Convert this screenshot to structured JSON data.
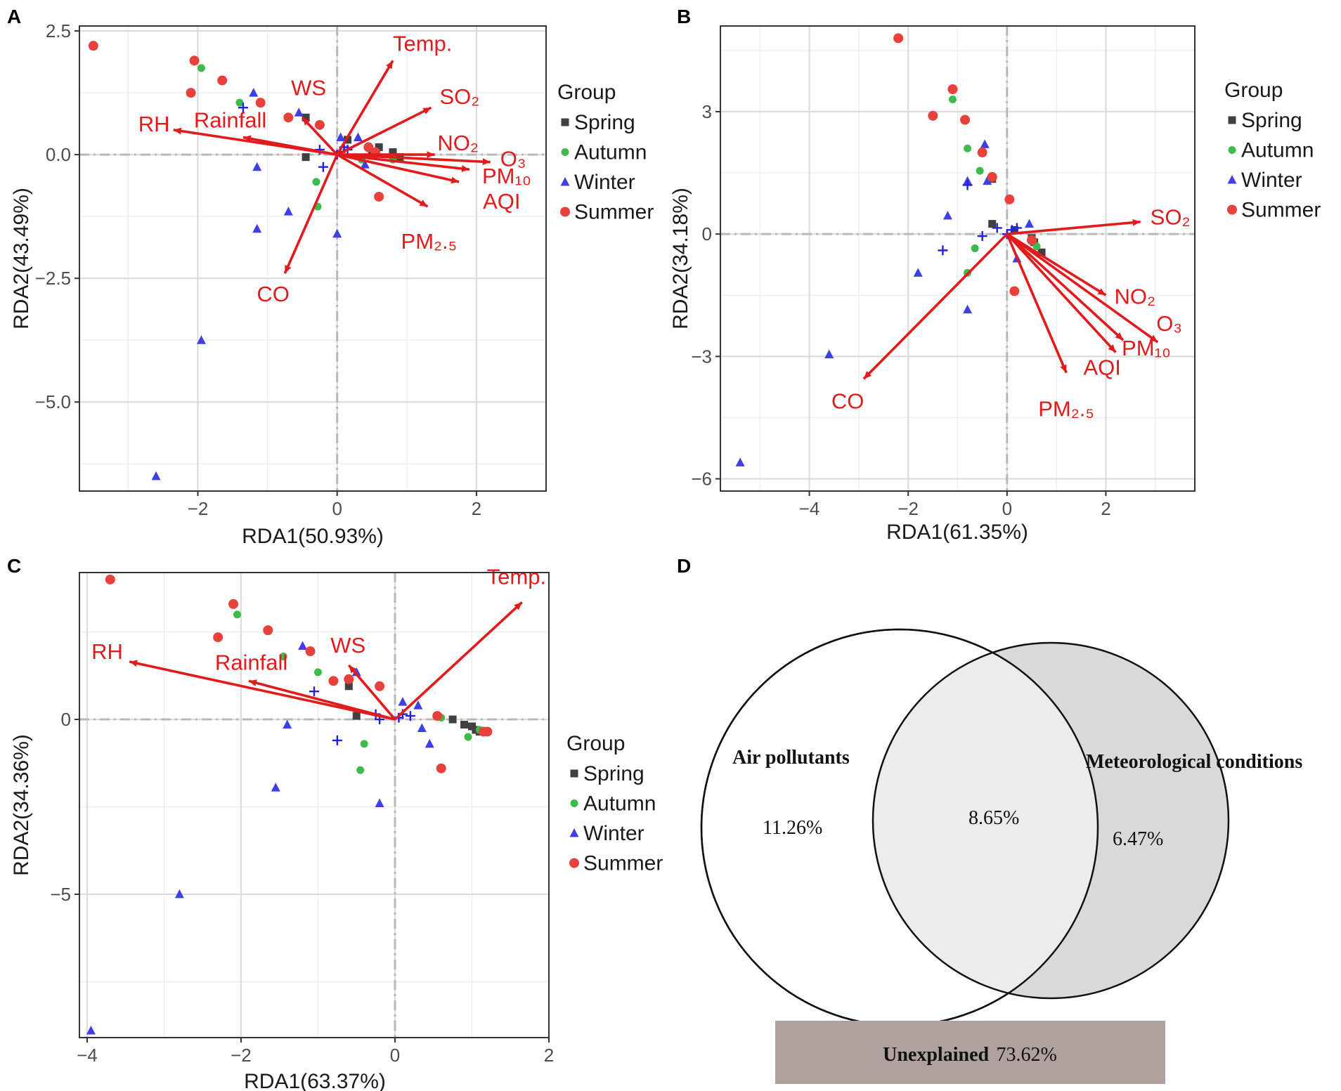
{
  "colors": {
    "spring": "#404040",
    "autumn": "#3dbb4a",
    "winter": "#3f3fe6",
    "summer": "#e8403a",
    "arrow": "#e31a1c",
    "species": "#2222dd"
  },
  "legend": {
    "title": "Group",
    "items": [
      {
        "key": "spring",
        "label": "Spring",
        "shape": "square"
      },
      {
        "key": "autumn",
        "label": "Autumn",
        "shape": "circle"
      },
      {
        "key": "winter",
        "label": "Winter",
        "shape": "triangle"
      },
      {
        "key": "summer",
        "label": "Summer",
        "shape": "circle"
      }
    ]
  },
  "chart_data": [
    {
      "panel": "A",
      "type": "scatter",
      "xlabel": "RDA1(50.93%)",
      "ylabel": "RDA2(43.49%)",
      "xlim": [
        -3.7,
        3.0
      ],
      "ylim": [
        -6.8,
        2.6
      ],
      "xticks": [
        -2,
        0,
        2
      ],
      "xtick_labels": [
        "−2",
        "0",
        "2"
      ],
      "yticks": [
        2.5,
        0.0,
        -2.5,
        -5.0
      ],
      "ytick_labels": [
        "2.5",
        "0.0",
        "−2.5",
        "−5.0"
      ],
      "arrows": [
        {
          "label": "Temp.",
          "x": 0.8,
          "y": 1.9
        },
        {
          "label": "SO₂",
          "x": 1.35,
          "y": 0.95
        },
        {
          "label": "NO₂",
          "x": 1.4,
          "y": 0.0
        },
        {
          "label": "O₃",
          "x": 2.2,
          "y": -0.15
        },
        {
          "label": "PM₁₀",
          "x": 1.9,
          "y": -0.3
        },
        {
          "label": "AQI",
          "x": 1.75,
          "y": -0.55
        },
        {
          "label": "PM₂.₅",
          "x": 1.3,
          "y": -1.05
        },
        {
          "label": "CO",
          "x": -0.75,
          "y": -2.4
        },
        {
          "label": "RH",
          "x": -2.35,
          "y": 0.5
        },
        {
          "label": "Rainfall",
          "x": -1.35,
          "y": 0.35
        },
        {
          "label": "WS",
          "x": -0.5,
          "y": 0.75
        }
      ],
      "points": {
        "spring": [
          [
            -0.45,
            0.75
          ],
          [
            -0.45,
            -0.05
          ],
          [
            0.15,
            0.3
          ],
          [
            0.6,
            0.15
          ],
          [
            0.8,
            0.05
          ],
          [
            0.9,
            -0.05
          ],
          [
            0.5,
            0.05
          ]
        ],
        "autumn": [
          [
            -1.95,
            1.75
          ],
          [
            -1.4,
            1.05
          ],
          [
            -0.3,
            -0.55
          ],
          [
            -0.28,
            -1.05
          ],
          [
            0.55,
            0.05
          ],
          [
            0.8,
            -0.1
          ],
          [
            0.35,
            -0.1
          ]
        ],
        "winter": [
          [
            -1.2,
            1.25
          ],
          [
            -0.55,
            0.85
          ],
          [
            -1.15,
            -0.25
          ],
          [
            -1.15,
            -1.5
          ],
          [
            -0.7,
            -1.15
          ],
          [
            -1.95,
            -3.75
          ],
          [
            -2.6,
            -6.5
          ],
          [
            0.05,
            0.35
          ],
          [
            0.3,
            0.35
          ],
          [
            0.0,
            -1.6
          ],
          [
            0.4,
            -0.2
          ]
        ],
        "summer": [
          [
            -3.5,
            2.2
          ],
          [
            -2.05,
            1.9
          ],
          [
            -1.65,
            1.5
          ],
          [
            -2.1,
            1.25
          ],
          [
            -1.1,
            1.05
          ],
          [
            -0.7,
            0.75
          ],
          [
            -0.25,
            0.6
          ],
          [
            0.6,
            -0.85
          ],
          [
            0.45,
            0.15
          ],
          [
            0.55,
            0.05
          ]
        ],
        "species": [
          [
            -1.35,
            0.95
          ],
          [
            -0.25,
            0.1
          ],
          [
            -0.2,
            -0.25
          ],
          [
            0.0,
            0.0
          ],
          [
            0.05,
            0.05
          ],
          [
            0.1,
            0.15
          ],
          [
            0.15,
            0.1
          ]
        ]
      }
    },
    {
      "panel": "B",
      "type": "scatter",
      "xlabel": "RDA1(61.35%)",
      "ylabel": "RDA2(34.18%)",
      "xlim": [
        -5.8,
        3.8
      ],
      "ylim": [
        -6.3,
        5.1
      ],
      "xticks": [
        -4,
        -2,
        0,
        2
      ],
      "xtick_labels": [
        "−4",
        "−2",
        "0",
        "2"
      ],
      "yticks": [
        3,
        0,
        -3,
        -6
      ],
      "ytick_labels": [
        "3",
        "0",
        "−3",
        "−6"
      ],
      "arrows": [
        {
          "label": "SO₂",
          "x": 2.7,
          "y": 0.3
        },
        {
          "label": "NO₂",
          "x": 2.0,
          "y": -1.5
        },
        {
          "label": "O₃",
          "x": 3.05,
          "y": -2.65
        },
        {
          "label": "PM₁₀",
          "x": 2.35,
          "y": -2.6
        },
        {
          "label": "AQI",
          "x": 2.2,
          "y": -2.9
        },
        {
          "label": "PM₂.₅",
          "x": 1.2,
          "y": -3.4
        },
        {
          "label": "CO",
          "x": -2.9,
          "y": -3.55
        }
      ],
      "points": {
        "spring": [
          [
            -0.3,
            0.25
          ],
          [
            -0.3,
            1.35
          ],
          [
            0.5,
            -0.1
          ],
          [
            0.55,
            -0.2
          ],
          [
            0.7,
            -0.45
          ],
          [
            0.15,
            0.1
          ]
        ],
        "autumn": [
          [
            -1.1,
            3.3
          ],
          [
            -0.8,
            2.1
          ],
          [
            -0.55,
            1.55
          ],
          [
            -0.65,
            -0.35
          ],
          [
            -0.8,
            -0.95
          ],
          [
            0.6,
            -0.3
          ]
        ],
        "winter": [
          [
            -0.8,
            1.3
          ],
          [
            -0.45,
            2.2
          ],
          [
            -1.2,
            0.45
          ],
          [
            -0.4,
            1.3
          ],
          [
            0.45,
            0.25
          ],
          [
            -1.8,
            -0.95
          ],
          [
            -0.8,
            -1.85
          ],
          [
            -3.6,
            -2.95
          ],
          [
            -5.4,
            -5.6
          ],
          [
            0.2,
            -0.6
          ]
        ],
        "summer": [
          [
            -2.2,
            4.8
          ],
          [
            -1.1,
            3.55
          ],
          [
            -1.5,
            2.9
          ],
          [
            -0.85,
            2.8
          ],
          [
            -0.5,
            2.0
          ],
          [
            -0.3,
            1.4
          ],
          [
            0.05,
            0.85
          ],
          [
            0.15,
            -1.4
          ],
          [
            0.5,
            -0.15
          ]
        ],
        "species": [
          [
            -0.8,
            1.2
          ],
          [
            -0.5,
            -0.05
          ],
          [
            -1.3,
            -0.4
          ],
          [
            -0.2,
            0.15
          ],
          [
            0.0,
            0.0
          ],
          [
            0.1,
            0.1
          ],
          [
            0.2,
            0.15
          ]
        ]
      }
    },
    {
      "panel": "C",
      "type": "scatter",
      "xlabel": "RDA1(63.37%)",
      "ylabel": "RDA2(34.36%)",
      "xlim": [
        -4.1,
        2.0
      ],
      "ylim": [
        -9.1,
        4.2
      ],
      "xticks": [
        -4,
        -2,
        0,
        2
      ],
      "xtick_labels": [
        "−4",
        "−2",
        "0",
        "2"
      ],
      "yticks": [
        0,
        -5
      ],
      "ytick_labels": [
        "0",
        "−5"
      ],
      "arrows": [
        {
          "label": "Temp.",
          "x": 1.65,
          "y": 3.35
        },
        {
          "label": "RH",
          "x": -3.45,
          "y": 1.65
        },
        {
          "label": "Rainfall",
          "x": -1.9,
          "y": 1.1
        },
        {
          "label": "WS",
          "x": -0.6,
          "y": 1.55
        }
      ],
      "points": {
        "spring": [
          [
            -0.6,
            0.95
          ],
          [
            -0.5,
            0.1
          ],
          [
            0.75,
            0.0
          ],
          [
            0.9,
            -0.15
          ],
          [
            1.0,
            -0.2
          ],
          [
            1.05,
            -0.3
          ],
          [
            1.1,
            -0.35
          ]
        ],
        "autumn": [
          [
            -2.05,
            3.0
          ],
          [
            -1.45,
            1.8
          ],
          [
            -1.0,
            1.35
          ],
          [
            -0.4,
            -0.7
          ],
          [
            -0.45,
            -1.45
          ],
          [
            0.6,
            0.05
          ],
          [
            0.95,
            -0.5
          ],
          [
            1.1,
            -0.3
          ]
        ],
        "winter": [
          [
            -1.2,
            2.1
          ],
          [
            -0.5,
            1.35
          ],
          [
            -1.4,
            -0.15
          ],
          [
            -1.55,
            -1.95
          ],
          [
            -0.2,
            -2.4
          ],
          [
            -2.8,
            -5.0
          ],
          [
            -3.95,
            -8.9
          ],
          [
            0.1,
            0.5
          ],
          [
            0.35,
            -0.25
          ],
          [
            0.45,
            -0.7
          ],
          [
            0.3,
            0.4
          ]
        ],
        "summer": [
          [
            -3.7,
            4.0
          ],
          [
            -2.1,
            3.3
          ],
          [
            -2.3,
            2.35
          ],
          [
            -1.65,
            2.55
          ],
          [
            -1.1,
            1.95
          ],
          [
            -0.8,
            1.1
          ],
          [
            -0.6,
            1.15
          ],
          [
            -0.2,
            0.95
          ],
          [
            0.6,
            -1.4
          ],
          [
            0.55,
            0.1
          ],
          [
            1.2,
            -0.35
          ],
          [
            1.15,
            -0.35
          ]
        ],
        "species": [
          [
            -1.05,
            0.8
          ],
          [
            -0.75,
            -0.6
          ],
          [
            -0.25,
            0.15
          ],
          [
            -0.2,
            0.0
          ],
          [
            0.05,
            0.05
          ],
          [
            0.1,
            0.15
          ],
          [
            0.2,
            0.1
          ]
        ]
      }
    },
    {
      "panel": "D",
      "type": "venn",
      "sets": [
        {
          "label": "Air pollutants",
          "unique": "11.26%"
        },
        {
          "label": "Meteorological conditions",
          "unique": "6.47%"
        }
      ],
      "intersection": "8.65%",
      "unexplained": {
        "label": "Unexplained",
        "value": "73.62%"
      }
    }
  ]
}
